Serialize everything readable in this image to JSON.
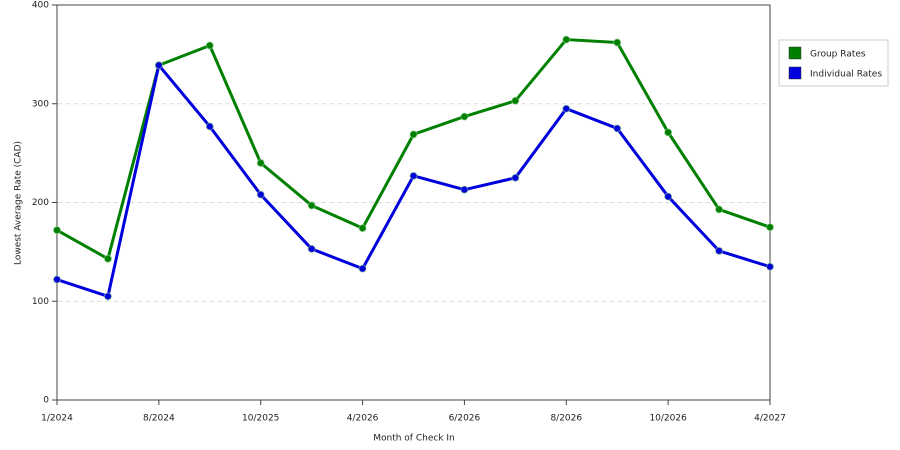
{
  "chart_data": {
    "type": "line",
    "x_label": "Month of Check In",
    "y_label": "Lowest Average Rate (CAD)",
    "categories": [
      "1/2024",
      null,
      "8/2024",
      null,
      "10/2025",
      null,
      "4/2026",
      null,
      "6/2026",
      null,
      "8/2026",
      null,
      "10/2026",
      null,
      "4/2027"
    ],
    "series": [
      {
        "name": "Group Rates",
        "color": "#008000",
        "values": [
          172,
          143,
          339,
          359,
          240,
          197,
          174,
          269,
          287,
          303,
          365,
          362,
          271,
          193,
          175
        ]
      },
      {
        "name": "Individual Rates",
        "color": "#0000dd",
        "values": [
          122,
          105,
          339,
          277,
          208,
          153,
          133,
          227,
          213,
          225,
          295,
          275,
          206,
          151,
          135
        ]
      }
    ],
    "ylim": [
      0,
      400
    ],
    "yticks": [
      0,
      100,
      200,
      300,
      400
    ],
    "grid": true,
    "legend": "right"
  }
}
